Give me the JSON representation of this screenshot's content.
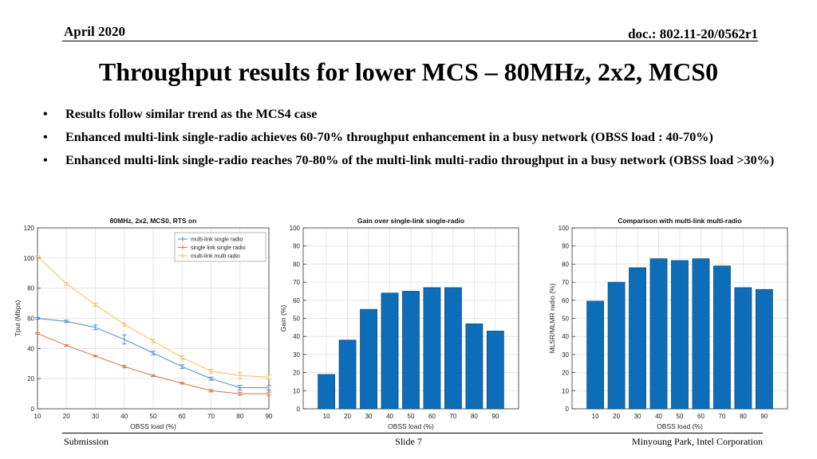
{
  "header": {
    "date": "April 2020",
    "doc": "doc.: 802.11-20/0562r1"
  },
  "title": "Throughput results for lower MCS – 80MHz, 2x2, MCS0",
  "bullets": [
    "Results follow similar trend as the MCS4 case",
    "Enhanced multi-link single-radio achieves 60-70% throughput enhancement in a busy network (OBSS load : 40-70%)",
    "Enhanced multi-link single-radio reaches 70-80% of the multi-link multi-radio throughput in a busy network (OBSS load >30%)"
  ],
  "bullet_symbol": "•",
  "footer": {
    "left": "Submission",
    "center": "Slide 7",
    "right": "Minyoung Park, Intel Corporation"
  },
  "chart_data": [
    {
      "type": "line",
      "title": "80MHz, 2x2, MCS0, RTS on",
      "xlabel": "OBSS load (%)",
      "ylabel": "Tput (Mbps)",
      "xlim": [
        10,
        90
      ],
      "ylim": [
        0,
        120
      ],
      "xticks": [
        10,
        20,
        30,
        40,
        50,
        60,
        70,
        80,
        90
      ],
      "yticks": [
        0,
        20,
        40,
        60,
        80,
        100,
        120
      ],
      "grid": true,
      "legend": "top-right",
      "x": [
        10,
        20,
        30,
        40,
        50,
        60,
        70,
        80,
        90
      ],
      "series": [
        {
          "name": "multi-link single radio",
          "color": "#4d8fd1",
          "values": [
            60,
            58,
            54,
            46,
            37,
            28,
            20,
            14,
            14
          ],
          "errors": [
            0.5,
            0.8,
            1.5,
            3,
            1.2,
            1.2,
            1,
            1.5,
            1.5
          ]
        },
        {
          "name": "single link single radio",
          "color": "#d4764a",
          "values": [
            50,
            42,
            35,
            28,
            22,
            17,
            12,
            10,
            10
          ],
          "errors": [
            0.5,
            0.5,
            0.5,
            0.8,
            0.6,
            0.6,
            0.8,
            1,
            1
          ]
        },
        {
          "name": "multi-link multi radio",
          "color": "#ecc052",
          "values": [
            101,
            83,
            69,
            56,
            45,
            34,
            25,
            22,
            21
          ],
          "errors": [
            0.5,
            0.8,
            1,
            1,
            1,
            1.2,
            1.2,
            2,
            1.5
          ]
        }
      ]
    },
    {
      "type": "bar",
      "title": "Gain over single-link single-radio",
      "xlabel": "",
      "ylabel": "Gain (%)",
      "categories": [
        "10",
        "20",
        "30",
        "40",
        "50",
        "60",
        "70",
        "80",
        "90"
      ],
      "values": [
        19,
        38,
        55,
        64,
        65,
        67,
        67,
        47,
        43
      ],
      "ylim": [
        0,
        100
      ],
      "yticks": [
        0,
        10,
        20,
        30,
        40,
        50,
        60,
        70,
        80,
        90,
        100
      ],
      "grid": true,
      "color": "#0e6db8"
    },
    {
      "type": "bar",
      "title": "Comparison with multi-link multi-radio",
      "xlabel": "OBSS load (%)",
      "ylabel": "MLSR/MLMR radio (%)",
      "categories": [
        "10",
        "20",
        "30",
        "40",
        "50",
        "60",
        "70",
        "80",
        "90"
      ],
      "values": [
        59.5,
        70,
        78,
        83,
        82,
        83,
        79,
        67,
        66
      ],
      "ylim": [
        0,
        100
      ],
      "yticks": [
        0,
        10,
        20,
        30,
        40,
        50,
        60,
        70,
        80,
        90,
        100
      ],
      "grid": true,
      "color": "#0e6db8"
    }
  ],
  "bar_axis_label_below_middle": "OBSS load (%)"
}
